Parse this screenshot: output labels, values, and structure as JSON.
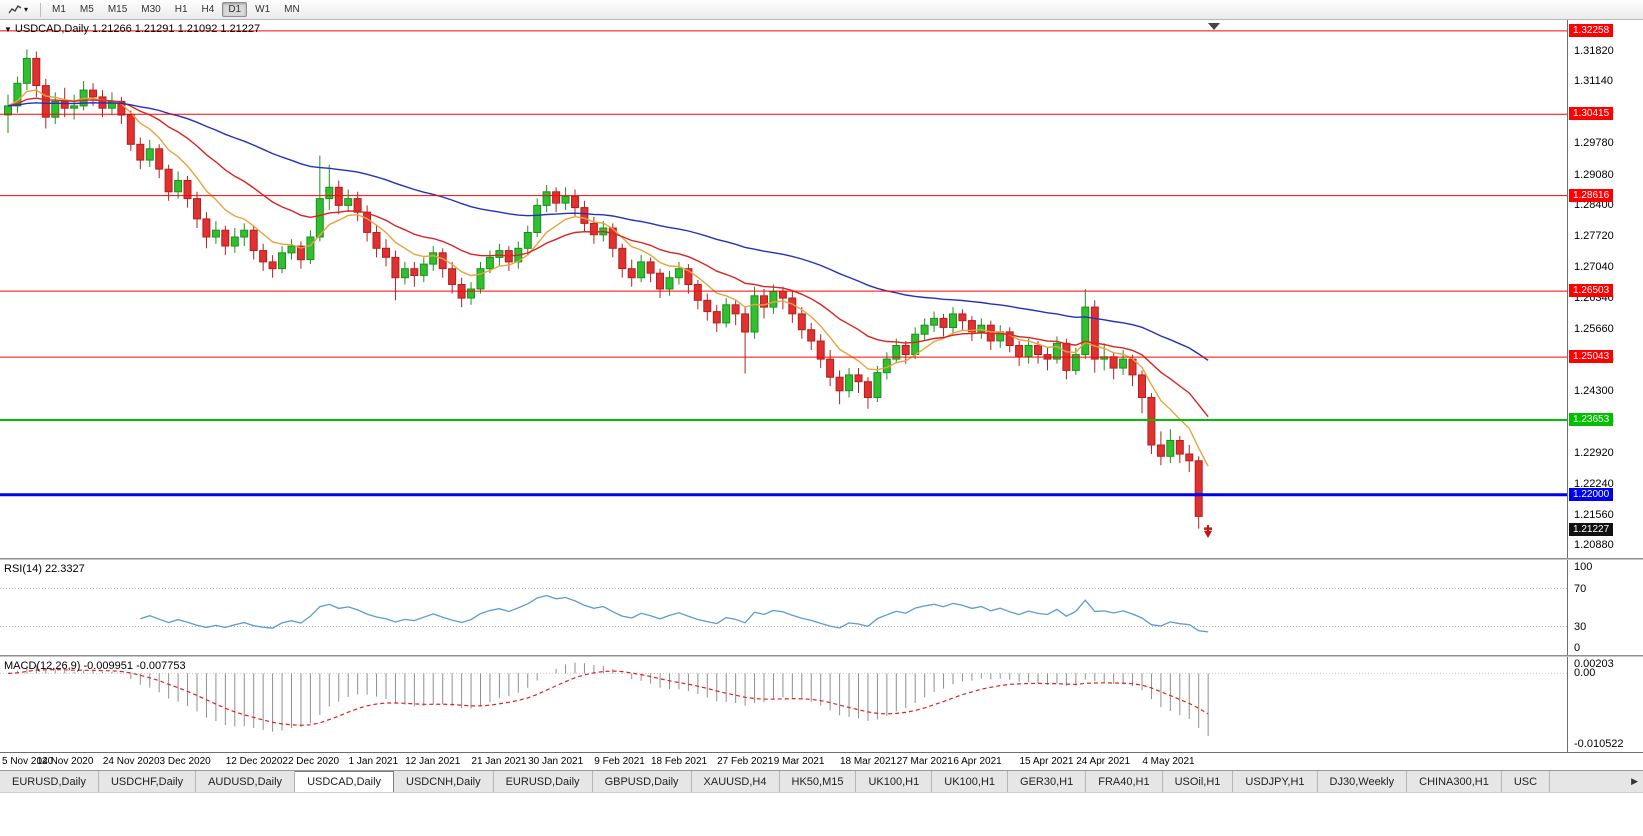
{
  "toolbar": {
    "timeframes": [
      "M1",
      "M5",
      "M15",
      "M30",
      "H1",
      "H4",
      "D1",
      "W1",
      "MN"
    ],
    "active": "D1",
    "caret": "▾"
  },
  "chart": {
    "title": "USDCAD,Daily 1.21266 1.21291 1.21092 1.21227",
    "price_axis_labels": [
      "1.31820",
      "1.31140",
      "1.30460",
      "1.29780",
      "1.29080",
      "1.28400",
      "1.27720",
      "1.27040",
      "1.26340",
      "1.25660",
      "1.24980",
      "1.24300",
      "1.23620",
      "1.22920",
      "1.22240",
      "1.21560",
      "1.20880"
    ],
    "levels": [
      {
        "price": 1.32258,
        "label": "1.32258",
        "color": "#FF0000",
        "width": 1
      },
      {
        "price": 1.30415,
        "label": "1.30415",
        "color": "#FF0000",
        "width": 1
      },
      {
        "price": 1.28616,
        "label": "1.28616",
        "color": "#FF0000",
        "width": 1
      },
      {
        "price": 1.26503,
        "label": "1.26503",
        "color": "#FF0000",
        "width": 1
      },
      {
        "price": 1.25043,
        "label": "1.25043",
        "color": "#FF0000",
        "width": 1
      },
      {
        "price": 1.23653,
        "label": "1.23653",
        "color": "#00C000",
        "width": 2
      },
      {
        "price": 1.22,
        "label": "1.22000",
        "color": "#0000F0",
        "width": 3
      }
    ],
    "current_price": {
      "value": 1.21227,
      "label": "1.21227",
      "tag_color": "#111111"
    }
  },
  "rsi": {
    "label": "RSI(14) 22.3327",
    "axis_labels": [
      {
        "text": "100",
        "value": 100
      },
      {
        "text": "70",
        "value": 70
      },
      {
        "text": "30",
        "value": 30
      },
      {
        "text": "0",
        "value": 0
      }
    ],
    "level_lines": [
      70,
      30
    ],
    "line_color": "#5B9BD5"
  },
  "macd": {
    "label": "MACD(12,26,9) -0.009951 -0.007753",
    "axis_labels": [
      {
        "text": "0.00203",
        "value": 0.00203
      },
      {
        "text": "0.00",
        "value": 0
      },
      {
        "text": "-0.010522",
        "value": -0.010522
      }
    ],
    "histogram_color": "#8f8f8f",
    "signal_color": "#E02020"
  },
  "tabs": {
    "items": [
      "EURUSD,Daily",
      "USDCHF,Daily",
      "AUDUSD,Daily",
      "USDCAD,Daily",
      "USDCNH,Daily",
      "EURUSD,Daily",
      "GBPUSD,Daily",
      "XAUUSD,H4",
      "HK50,M15",
      "UK100,H1",
      "UK100,H1",
      "GER30,H1",
      "FRA40,H1",
      "USOil,H1",
      "USDJPY,H1",
      "DJ30,Weekly",
      "CHINA300,H1",
      "USC"
    ],
    "active_index": 3,
    "scroll_arrow": "▶"
  },
  "chart_data": {
    "type": "candlestick",
    "symbol": "USDCAD",
    "timeframe": "Daily",
    "current_bar": {
      "open": 1.21266,
      "high": 1.21291,
      "low": 1.21092,
      "close": 1.21227
    },
    "y_range": [
      1.206,
      1.325
    ],
    "x_labels": [
      "5 Nov 2020",
      "14 Nov 2020",
      "24 Nov 2020",
      "3 Dec 2020",
      "12 Dec 2020",
      "22 Dec 2020",
      "1 Jan 2021",
      "12 Jan 2021",
      "21 Jan 2021",
      "30 Jan 2021",
      "9 Feb 2021",
      "18 Feb 2021",
      "27 Feb 2021",
      "9 Mar 2021",
      "18 Mar 2021",
      "27 Mar 2021",
      "6 Apr 2021",
      "15 Apr 2021",
      "24 Apr 2021",
      "4 May 2021"
    ],
    "x_label_bars": [
      0,
      6,
      13,
      19,
      26,
      32,
      39,
      45,
      52,
      58,
      65,
      71,
      78,
      84,
      91,
      97,
      103,
      110,
      116,
      123
    ],
    "overlays": [
      {
        "name": "ma-fast",
        "period": 8,
        "color": "#E8A33D"
      },
      {
        "name": "ma-mid",
        "period": 20,
        "color": "#DD2222"
      },
      {
        "name": "ma-slow",
        "period": 55,
        "color": "#2233BB"
      }
    ],
    "indicators": [
      {
        "name": "RSI",
        "period": 14,
        "value": 22.3327
      },
      {
        "name": "MACD",
        "fast": 12,
        "slow": 26,
        "signal": 9,
        "value": -0.009951,
        "signal_value": -0.007753
      }
    ],
    "ohlc": [
      [
        1.304,
        1.3085,
        1.3,
        1.306
      ],
      [
        1.306,
        1.3125,
        1.3045,
        1.311
      ],
      [
        1.311,
        1.3185,
        1.3095,
        1.3165
      ],
      [
        1.3165,
        1.318,
        1.308,
        1.3105
      ],
      [
        1.3105,
        1.312,
        1.301,
        1.3035
      ],
      [
        1.3035,
        1.309,
        1.302,
        1.307
      ],
      [
        1.307,
        1.31,
        1.3035,
        1.3055
      ],
      [
        1.3055,
        1.3085,
        1.303,
        1.306
      ],
      [
        1.306,
        1.3115,
        1.305,
        1.3095
      ],
      [
        1.3095,
        1.311,
        1.306,
        1.308
      ],
      [
        1.308,
        1.3095,
        1.3035,
        1.3055
      ],
      [
        1.3055,
        1.309,
        1.304,
        1.307
      ],
      [
        1.307,
        1.308,
        1.302,
        1.304
      ],
      [
        1.304,
        1.305,
        1.296,
        1.2975
      ],
      [
        1.2975,
        1.299,
        1.292,
        1.294
      ],
      [
        1.294,
        1.2985,
        1.2925,
        1.2965
      ],
      [
        1.2965,
        1.2975,
        1.29,
        1.292
      ],
      [
        1.292,
        1.293,
        1.285,
        1.287
      ],
      [
        1.287,
        1.2915,
        1.2855,
        1.2895
      ],
      [
        1.2895,
        1.2905,
        1.2835,
        1.2855
      ],
      [
        1.2855,
        1.287,
        1.279,
        1.281
      ],
      [
        1.281,
        1.2825,
        1.2745,
        1.277
      ],
      [
        1.277,
        1.2805,
        1.2755,
        1.2785
      ],
      [
        1.2785,
        1.2795,
        1.273,
        1.275
      ],
      [
        1.275,
        1.279,
        1.2735,
        1.277
      ],
      [
        1.277,
        1.28,
        1.275,
        1.2785
      ],
      [
        1.2785,
        1.2795,
        1.272,
        1.274
      ],
      [
        1.274,
        1.2755,
        1.2695,
        1.2715
      ],
      [
        1.2715,
        1.273,
        1.268,
        1.27
      ],
      [
        1.27,
        1.275,
        1.269,
        1.2735
      ],
      [
        1.2735,
        1.2765,
        1.272,
        1.275
      ],
      [
        1.275,
        1.276,
        1.27,
        1.272
      ],
      [
        1.272,
        1.2785,
        1.271,
        1.277
      ],
      [
        1.277,
        1.295,
        1.276,
        1.2855
      ],
      [
        1.2855,
        1.293,
        1.283,
        1.288
      ],
      [
        1.288,
        1.2895,
        1.282,
        1.284
      ],
      [
        1.284,
        1.2875,
        1.2825,
        1.2855
      ],
      [
        1.2855,
        1.287,
        1.2805,
        1.2825
      ],
      [
        1.2825,
        1.284,
        1.276,
        1.278
      ],
      [
        1.278,
        1.2795,
        1.2725,
        1.2745
      ],
      [
        1.2745,
        1.2765,
        1.2705,
        1.2725
      ],
      [
        1.2725,
        1.274,
        1.263,
        1.268
      ],
      [
        1.268,
        1.2715,
        1.2665,
        1.27
      ],
      [
        1.27,
        1.2715,
        1.266,
        1.2685
      ],
      [
        1.2685,
        1.2725,
        1.267,
        1.271
      ],
      [
        1.271,
        1.275,
        1.2695,
        1.2735
      ],
      [
        1.2735,
        1.2745,
        1.268,
        1.27
      ],
      [
        1.27,
        1.2715,
        1.2645,
        1.2665
      ],
      [
        1.2665,
        1.268,
        1.2615,
        1.2635
      ],
      [
        1.2635,
        1.267,
        1.262,
        1.2655
      ],
      [
        1.2655,
        1.2715,
        1.2645,
        1.27
      ],
      [
        1.27,
        1.274,
        1.269,
        1.2725
      ],
      [
        1.2725,
        1.2755,
        1.2705,
        1.274
      ],
      [
        1.274,
        1.275,
        1.2695,
        1.2715
      ],
      [
        1.2715,
        1.276,
        1.27,
        1.2745
      ],
      [
        1.2745,
        1.2795,
        1.273,
        1.278
      ],
      [
        1.278,
        1.2855,
        1.277,
        1.284
      ],
      [
        1.284,
        1.2885,
        1.2825,
        1.287
      ],
      [
        1.287,
        1.288,
        1.2825,
        1.2845
      ],
      [
        1.2845,
        1.288,
        1.283,
        1.286
      ],
      [
        1.286,
        1.2875,
        1.2815,
        1.2835
      ],
      [
        1.2835,
        1.285,
        1.278,
        1.28
      ],
      [
        1.28,
        1.2815,
        1.2755,
        1.2775
      ],
      [
        1.2775,
        1.2805,
        1.276,
        1.279
      ],
      [
        1.279,
        1.28,
        1.2725,
        1.2745
      ],
      [
        1.2745,
        1.2755,
        1.268,
        1.27
      ],
      [
        1.27,
        1.272,
        1.266,
        1.268
      ],
      [
        1.268,
        1.273,
        1.267,
        1.2715
      ],
      [
        1.2715,
        1.2725,
        1.267,
        1.269
      ],
      [
        1.269,
        1.27,
        1.2635,
        1.2655
      ],
      [
        1.2655,
        1.2695,
        1.264,
        1.268
      ],
      [
        1.268,
        1.2715,
        1.2665,
        1.27
      ],
      [
        1.27,
        1.271,
        1.2645,
        1.2665
      ],
      [
        1.2665,
        1.2675,
        1.261,
        1.263
      ],
      [
        1.263,
        1.2645,
        1.2585,
        1.2605
      ],
      [
        1.2605,
        1.262,
        1.256,
        1.258
      ],
      [
        1.258,
        1.2635,
        1.257,
        1.262
      ],
      [
        1.262,
        1.263,
        1.2575,
        1.26
      ],
      [
        1.26,
        1.2615,
        1.2468,
        1.256
      ],
      [
        1.256,
        1.266,
        1.2545,
        1.264
      ],
      [
        1.264,
        1.2655,
        1.259,
        1.2615
      ],
      [
        1.2615,
        1.2665,
        1.26,
        1.265
      ],
      [
        1.265,
        1.266,
        1.261,
        1.2635
      ],
      [
        1.2635,
        1.265,
        1.258,
        1.26
      ],
      [
        1.26,
        1.2615,
        1.2545,
        1.2565
      ],
      [
        1.2565,
        1.258,
        1.252,
        1.254
      ],
      [
        1.254,
        1.2555,
        1.248,
        1.25
      ],
      [
        1.25,
        1.252,
        1.244,
        1.246
      ],
      [
        1.246,
        1.2475,
        1.24,
        1.243
      ],
      [
        1.243,
        1.248,
        1.2415,
        1.2465
      ],
      [
        1.2465,
        1.248,
        1.2425,
        1.245
      ],
      [
        1.245,
        1.246,
        1.239,
        1.2415
      ],
      [
        1.2415,
        1.2485,
        1.2405,
        1.247
      ],
      [
        1.247,
        1.2515,
        1.2455,
        1.25
      ],
      [
        1.25,
        1.2545,
        1.249,
        1.253
      ],
      [
        1.253,
        1.254,
        1.249,
        1.251
      ],
      [
        1.251,
        1.257,
        1.25,
        1.2555
      ],
      [
        1.2555,
        1.259,
        1.254,
        1.2575
      ],
      [
        1.2575,
        1.2605,
        1.256,
        1.259
      ],
      [
        1.259,
        1.26,
        1.255,
        1.257
      ],
      [
        1.257,
        1.2615,
        1.2555,
        1.26
      ],
      [
        1.26,
        1.261,
        1.2565,
        1.2585
      ],
      [
        1.2585,
        1.2595,
        1.254,
        1.256
      ],
      [
        1.256,
        1.259,
        1.2545,
        1.2575
      ],
      [
        1.2575,
        1.2585,
        1.252,
        1.254
      ],
      [
        1.254,
        1.2575,
        1.2525,
        1.256
      ],
      [
        1.256,
        1.257,
        1.2515,
        1.253
      ],
      [
        1.253,
        1.254,
        1.2485,
        1.2505
      ],
      [
        1.2505,
        1.2545,
        1.249,
        1.253
      ],
      [
        1.253,
        1.254,
        1.249,
        1.251
      ],
      [
        1.251,
        1.2525,
        1.2475,
        1.25
      ],
      [
        1.25,
        1.255,
        1.249,
        1.2535
      ],
      [
        1.2535,
        1.2545,
        1.2455,
        1.2475
      ],
      [
        1.2475,
        1.2525,
        1.2465,
        1.251
      ],
      [
        1.251,
        1.2655,
        1.25,
        1.2615
      ],
      [
        1.2615,
        1.263,
        1.247,
        1.25
      ],
      [
        1.25,
        1.2535,
        1.2475,
        1.2505
      ],
      [
        1.2505,
        1.2515,
        1.2455,
        1.248
      ],
      [
        1.248,
        1.252,
        1.2465,
        1.25
      ],
      [
        1.25,
        1.251,
        1.244,
        1.2465
      ],
      [
        1.2465,
        1.2475,
        1.238,
        1.2415
      ],
      [
        1.2415,
        1.2425,
        1.229,
        1.231
      ],
      [
        1.231,
        1.234,
        1.2265,
        1.2285
      ],
      [
        1.2285,
        1.2345,
        1.227,
        1.232
      ],
      [
        1.232,
        1.233,
        1.227,
        1.229
      ],
      [
        1.229,
        1.231,
        1.225,
        1.2275
      ],
      [
        1.2275,
        1.2285,
        1.2125,
        1.2152
      ],
      [
        1.21266,
        1.21291,
        1.21092,
        1.21227
      ]
    ]
  }
}
